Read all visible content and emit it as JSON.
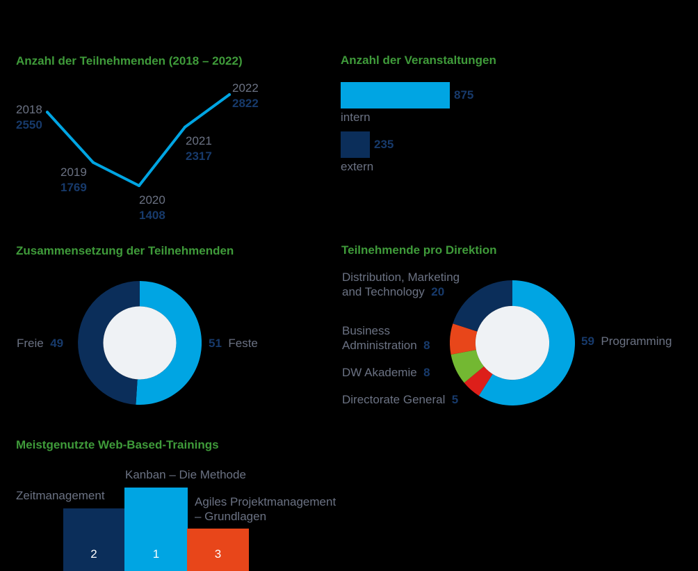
{
  "colors": {
    "background": "#000000",
    "title_green": "#3f9b3a",
    "light_blue": "#00a5e3",
    "dark_blue": "#0b2e5a",
    "orange": "#e8461a",
    "green": "#73b832",
    "red": "#dd1f1a",
    "center": "#eff2f5",
    "label_gray": "#6b7283",
    "value_navy": "#173a6b"
  },
  "chart_data": [
    {
      "type": "line",
      "title": "Anzahl der Teilnehmenden (2018 – 2022)",
      "x": [
        "2018",
        "2019",
        "2020",
        "2021",
        "2022"
      ],
      "values": [
        2550,
        1769,
        1408,
        2317,
        2822
      ],
      "value_labels": [
        "2550",
        "1769",
        "1408",
        "2317",
        "2822"
      ]
    },
    {
      "type": "bar",
      "orientation": "horizontal",
      "title": "Anzahl der Veranstaltungen",
      "categories": [
        "intern",
        "extern"
      ],
      "values": [
        875,
        235
      ],
      "value_labels": [
        "875",
        "235"
      ]
    },
    {
      "type": "pie",
      "title": "Zusammensetzung der Teilnehmenden",
      "slices": [
        {
          "label": "Feste",
          "value": 51,
          "value_label": "51"
        },
        {
          "label": "Freie",
          "value": 49,
          "value_label": "49"
        }
      ]
    },
    {
      "type": "pie",
      "title": "Teilnehmende pro Direktion",
      "slices": [
        {
          "label": "Programming",
          "value": 59,
          "value_label": "59"
        },
        {
          "label": "Directorate General",
          "value": 5,
          "value_label": "5"
        },
        {
          "label": "DW Akademie",
          "value": 8,
          "value_label": "8"
        },
        {
          "label": "Business Administration",
          "label_lines": [
            "Business",
            "Administration"
          ],
          "value": 8,
          "value_label": "8"
        },
        {
          "label": "Distribution, Marketing and Technology",
          "label_lines": [
            "Distribution, Marketing",
            "and Technology"
          ],
          "value": 20,
          "value_label": "20"
        }
      ]
    },
    {
      "type": "bar",
      "title": "Meistgenutzte Web-Based-Trainings",
      "categories": [
        "Zeitmanagement",
        "Kanban – Die Methode",
        "Agiles Projektmanagement – Grundlagen"
      ],
      "category_lines": [
        [
          "Zeitmanagement"
        ],
        [
          "Kanban – Die Methode"
        ],
        [
          "Agiles Projektmanagement",
          "– Grundlagen"
        ]
      ],
      "ranks": [
        2,
        1,
        3
      ],
      "rank_labels": [
        "2",
        "1",
        "3"
      ]
    }
  ]
}
